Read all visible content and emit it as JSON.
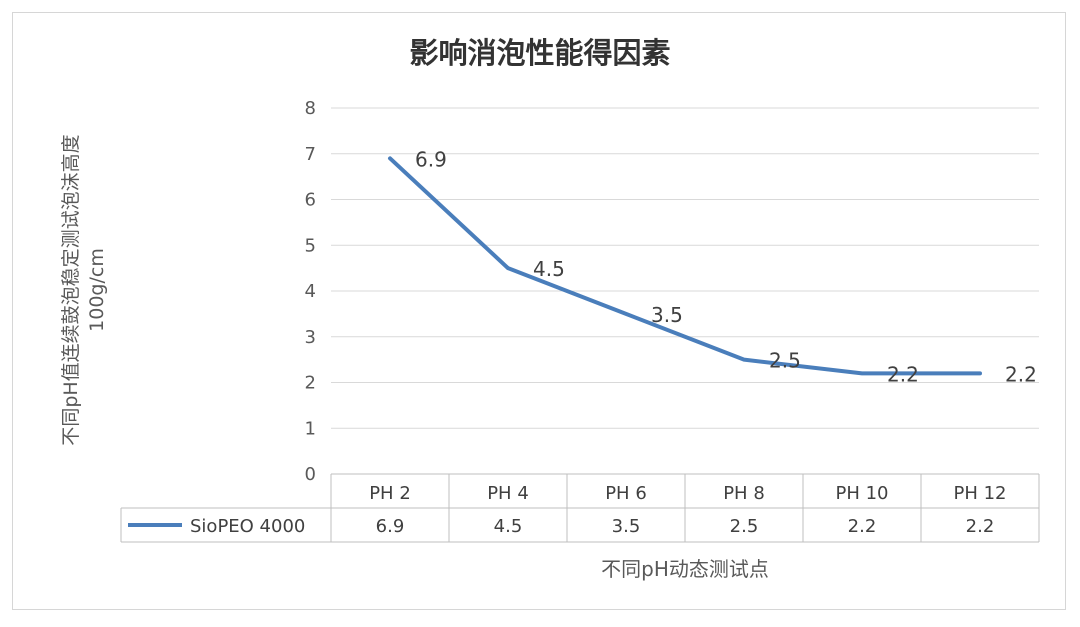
{
  "chart_data": {
    "type": "line",
    "title": "影响消泡性能得因素",
    "ylabel_line1": "不同pH值连续鼓泡稳定测试泡沫高度",
    "ylabel_line2": "100g/cm",
    "xlabel": "不同pH动态测试点",
    "categories": [
      "PH 2",
      "PH 4",
      "PH 6",
      "PH 8",
      "PH 10",
      "PH 12"
    ],
    "series": [
      {
        "name": "SioPEO 4000",
        "values": [
          6.9,
          4.5,
          3.5,
          2.5,
          2.2,
          2.2
        ],
        "color": "#4a7ebb"
      }
    ],
    "ylim": [
      0,
      8
    ],
    "yticks": [
      0,
      1,
      2,
      3,
      4,
      5,
      6,
      7,
      8
    ],
    "grid": true,
    "data_labels": [
      "6.9",
      "4.5",
      "3.5",
      "2.5",
      "2.2",
      "2.2"
    ],
    "data_table": true,
    "table_cells": [
      "6.9",
      "4.5",
      "3.5",
      "2.5",
      "2.2",
      "2.2"
    ]
  }
}
